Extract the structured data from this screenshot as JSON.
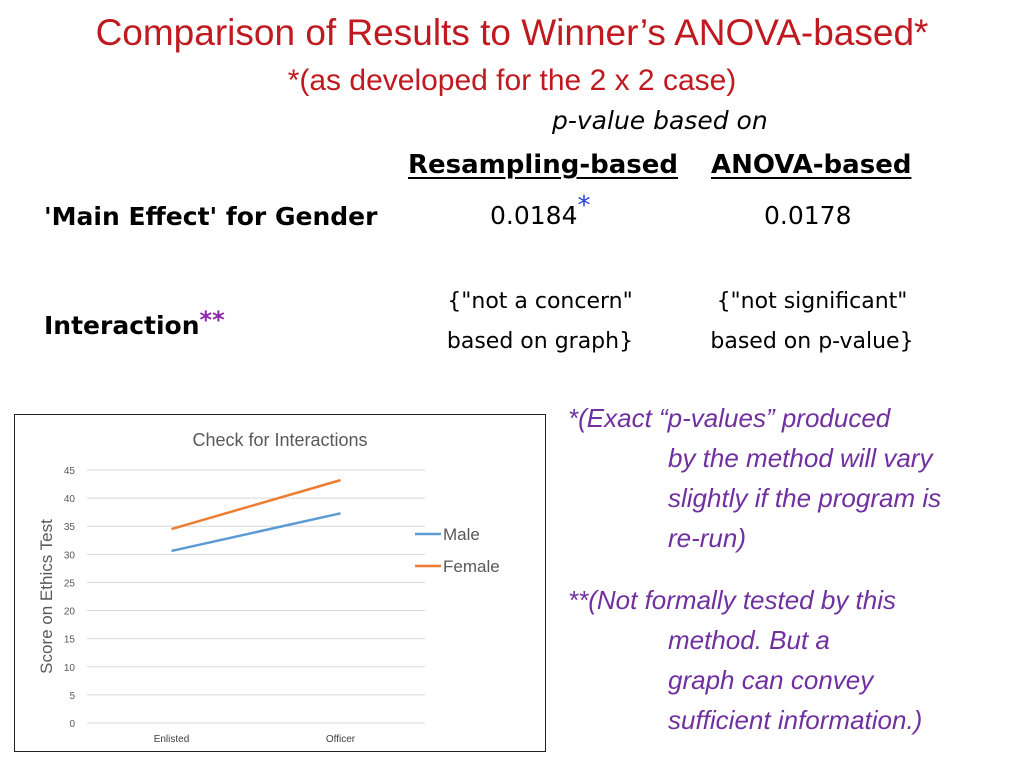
{
  "slide": {
    "title": "Comparison of Results to Winner’s ANOVA-based*",
    "subtitle": "*(as developed for the 2 x 2 case)"
  },
  "table": {
    "header_note": "p-value based on",
    "columns": [
      "Resampling-based",
      "ANOVA-based"
    ],
    "rows": [
      {
        "label": "'Main Effect' for Gender",
        "label_mark": "",
        "values": [
          "0.0184",
          "0.0178"
        ],
        "value_mark": "*"
      },
      {
        "label": "Interaction",
        "label_mark": "**",
        "cell_lines": [
          [
            "{\"not a concern\"",
            "based on graph}"
          ],
          [
            "{\"not significant\"",
            "based on p-value}"
          ]
        ]
      }
    ]
  },
  "notes": [
    {
      "lines": [
        "*(Exact “p-values” produced",
        "by the  method will vary",
        "slightly if the program is",
        "re-run)"
      ]
    },
    {
      "lines": [
        "**(Not formally tested by this",
        "method.  But a",
        "graph can convey",
        "sufficient information.)"
      ]
    }
  ],
  "chart_data": {
    "type": "line",
    "title": "Check for Interactions",
    "xlabel": "",
    "ylabel": "Score on Ethics Test",
    "categories": [
      "Enlisted",
      "Officer"
    ],
    "ylim": [
      0,
      45
    ],
    "yticks": [
      "0",
      "5",
      "10",
      "15",
      "20",
      "25",
      "30",
      "35",
      "40",
      "45"
    ],
    "grid": true,
    "legend": "right",
    "series": [
      {
        "name": "Male",
        "values": [
          30.6,
          37.3
        ],
        "color": "#5b9bd5"
      },
      {
        "name": "Female",
        "values": [
          34.5,
          43.2
        ],
        "color": "#ed7d31"
      }
    ]
  }
}
